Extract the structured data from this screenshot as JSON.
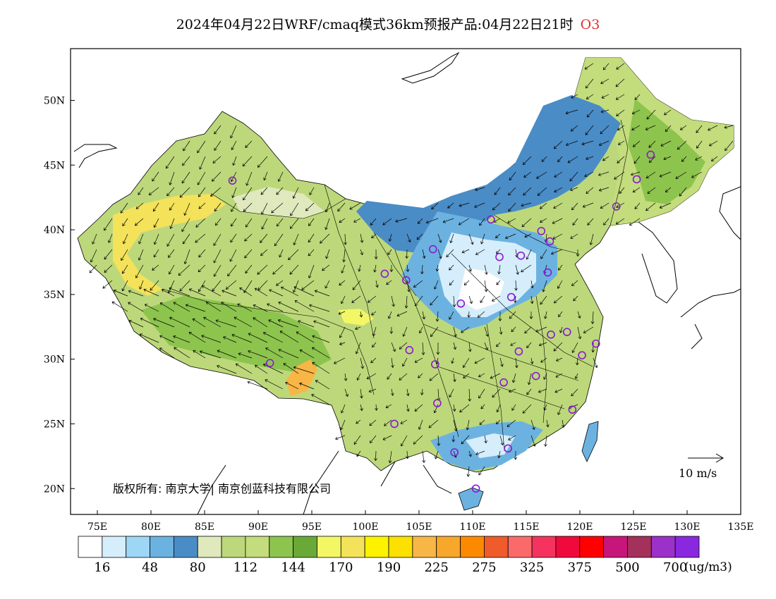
{
  "title": {
    "text": "2024年04月22日WRF/cmaq模式36km预报产品:04月22日21时",
    "species": "O3"
  },
  "axes": {
    "lat_ticks": [
      "50N",
      "45N",
      "40N",
      "35N",
      "30N",
      "25N",
      "20N"
    ],
    "lon_ticks": [
      "75E",
      "80E",
      "85E",
      "90E",
      "95E",
      "100E",
      "105E",
      "110E",
      "115E",
      "120E",
      "125E",
      "130E",
      "135E"
    ]
  },
  "copyright": "版权所有: 南京大学| 南京创蓝科技有限公司",
  "wind_scale_label": "10 m/s",
  "colorbar": {
    "colors": [
      "#ffffff",
      "#d6eefb",
      "#9ed6f5",
      "#6cb2e0",
      "#4a8cc6",
      "#dfe9bd",
      "#bdd87a",
      "#c3dc7c",
      "#8dc44e",
      "#6aa838",
      "#f3f766",
      "#f3e25a",
      "#fdf200",
      "#fbe000",
      "#f8b646",
      "#f7a72a",
      "#fc8a00",
      "#ef5b2a",
      "#fa6a6a",
      "#f4345e",
      "#f00a3c",
      "#fe0000",
      "#c8157c",
      "#a4305c",
      "#9b31c8",
      "#8a28e0"
    ],
    "labels": [
      "16",
      "48",
      "80",
      "112",
      "144",
      "170",
      "190",
      "225",
      "275",
      "325",
      "375",
      "500",
      "700"
    ],
    "units": "(ug/m3)"
  },
  "stations": [
    {
      "lon": 87.6,
      "lat": 43.8
    },
    {
      "lon": 91.1,
      "lat": 29.7
    },
    {
      "lon": 101.8,
      "lat": 36.6
    },
    {
      "lon": 103.8,
      "lat": 36.1
    },
    {
      "lon": 106.3,
      "lat": 38.5
    },
    {
      "lon": 104.1,
      "lat": 30.7
    },
    {
      "lon": 106.5,
      "lat": 29.6
    },
    {
      "lon": 106.7,
      "lat": 26.6
    },
    {
      "lon": 102.7,
      "lat": 25.0
    },
    {
      "lon": 108.9,
      "lat": 34.3
    },
    {
      "lon": 111.7,
      "lat": 40.8
    },
    {
      "lon": 112.5,
      "lat": 37.9
    },
    {
      "lon": 113.6,
      "lat": 34.8
    },
    {
      "lon": 114.5,
      "lat": 38.0
    },
    {
      "lon": 116.4,
      "lat": 39.9
    },
    {
      "lon": 117.2,
      "lat": 39.1
    },
    {
      "lon": 117.0,
      "lat": 36.7
    },
    {
      "lon": 114.3,
      "lat": 30.6
    },
    {
      "lon": 112.9,
      "lat": 28.2
    },
    {
      "lon": 115.9,
      "lat": 28.7
    },
    {
      "lon": 117.3,
      "lat": 31.9
    },
    {
      "lon": 118.8,
      "lat": 32.1
    },
    {
      "lon": 120.2,
      "lat": 30.3
    },
    {
      "lon": 121.5,
      "lat": 31.2
    },
    {
      "lon": 119.3,
      "lat": 26.1
    },
    {
      "lon": 113.3,
      "lat": 23.1
    },
    {
      "lon": 108.3,
      "lat": 22.8
    },
    {
      "lon": 110.3,
      "lat": 20.0
    },
    {
      "lon": 123.4,
      "lat": 41.8
    },
    {
      "lon": 125.3,
      "lat": 43.9
    },
    {
      "lon": 126.6,
      "lat": 45.8
    }
  ]
}
